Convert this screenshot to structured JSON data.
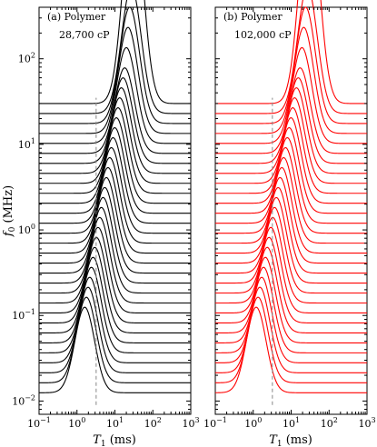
{
  "chart_data": [
    {
      "type": "line",
      "panel_label": "(a) Polymer",
      "viscosity_label": "28,700 cP",
      "series_color": "#000000",
      "xlabel": "T1 (ms)",
      "ylabel": "f0 (MHz)",
      "xscale": "log",
      "yscale": "log",
      "xlim": [
        0.1,
        1000
      ],
      "ylim": [
        0.007,
        400
      ],
      "xtick_labels": [
        "10^-1",
        "10^0",
        "10^1",
        "10^2",
        "10^3"
      ],
      "ytick_labels": [
        "10^-2",
        "10^-1",
        "10^0",
        "10^1",
        "10^2"
      ],
      "marker_line_x": 3.2,
      "distributions": {
        "count": 30,
        "f0_first": 0.0125,
        "f0_last": 30,
        "peak_T1_first": 1.6,
        "peak_T1_last": 30,
        "peak_height_decades": 1.0,
        "last_peak_height_decades": 2.4,
        "log_width": 0.26
      }
    },
    {
      "type": "line",
      "panel_label": "(b) Polymer",
      "viscosity_label": "102,000 cP",
      "series_color": "#ff0000",
      "xlabel": "T1 (ms)",
      "xscale": "log",
      "yscale": "log",
      "xlim": [
        0.1,
        1000
      ],
      "ylim": [
        0.007,
        400
      ],
      "xtick_labels": [
        "10^-1",
        "10^0",
        "10^1",
        "10^2",
        "10^3"
      ],
      "marker_line_x": 3.2,
      "distributions": {
        "count": 30,
        "f0_first": 0.0125,
        "f0_last": 30,
        "peak_T1_first": 1.2,
        "peak_T1_last": 30,
        "peak_height_decades": 1.0,
        "last_peak_height_decades": 2.4,
        "log_width": 0.26
      }
    }
  ]
}
